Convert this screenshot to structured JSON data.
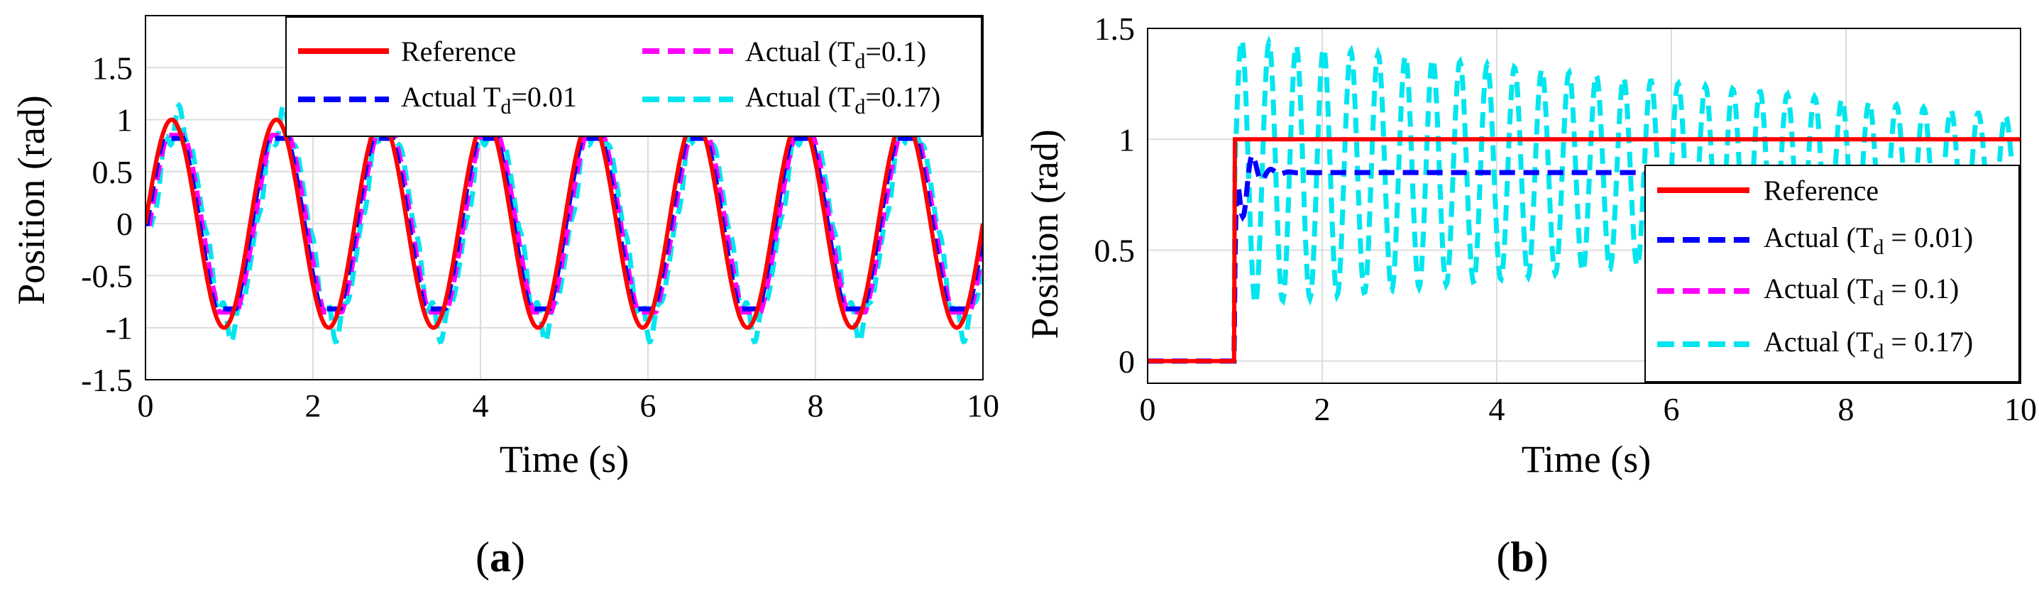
{
  "chart_data": [
    {
      "id": "a",
      "type": "line",
      "caption": "a",
      "title": "",
      "xlabel": "Time (s)",
      "ylabel": "Position (rad)",
      "xlim": [
        0,
        10
      ],
      "ylim": [
        -1.5,
        2.0
      ],
      "xticks": [
        "0",
        "2",
        "4",
        "6",
        "8",
        "10"
      ],
      "yticks": [
        "-1.5",
        "-1",
        "-0.5",
        "0",
        "0.5",
        "1",
        "1.5"
      ],
      "grid": true,
      "legend_position": "top-right",
      "signal": {
        "kind": "sine",
        "amplitude": 1.0,
        "frequency_hz": 0.8,
        "duration_s": 10
      },
      "series": [
        {
          "name": "Reference",
          "legend_main": "Reference",
          "legend_sub": "",
          "legend_tail": "",
          "color": "#ff0000",
          "style": "solid",
          "gain": 1.0,
          "delay_s": 0.0,
          "clip": 1.0,
          "jitter": 0.0
        },
        {
          "name": "Actual T_d=0.01",
          "legend_main": "Actual T",
          "legend_sub": "d",
          "legend_tail": "=0.01)",
          "legend_prefix_paren": false,
          "color": "#0000ff",
          "style": "dashed",
          "gain": 1.0,
          "delay_s": 0.02,
          "clip": 0.82,
          "jitter": 0.0
        },
        {
          "name": "Actual (T_d=0.1)",
          "legend_main": "Actual (T",
          "legend_sub": "d",
          "legend_tail": "=0.1)",
          "color": "#ff00ff",
          "style": "dashed",
          "gain": 1.0,
          "delay_s": 0.05,
          "clip": 0.85,
          "jitter": 0.0
        },
        {
          "name": "Actual (T_d=0.17)",
          "legend_main": "Actual (T",
          "legend_sub": "d",
          "legend_tail": "=0.17)",
          "color": "#00e5ee",
          "style": "dashed",
          "gain": 1.0,
          "delay_s": 0.08,
          "clip": 1.0,
          "jitter": 0.25
        }
      ],
      "legend_labels": {
        "reference": "Reference",
        "td001_main": "Actual T",
        "td001_tail": "=0.01)",
        "td01_main": "Actual (T",
        "td01_tail": "=0.1)",
        "td017_main": "Actual (T",
        "td017_tail": "=0.17)",
        "sub": "d"
      }
    },
    {
      "id": "b",
      "type": "line",
      "caption": "b",
      "title": "",
      "xlabel": "Time (s)",
      "ylabel": "Position (rad)",
      "xlim": [
        0,
        10
      ],
      "ylim": [
        -0.1,
        1.5
      ],
      "xticks": [
        "0",
        "2",
        "4",
        "6",
        "8",
        "10"
      ],
      "yticks": [
        "0",
        "0.5",
        "1",
        "1.5"
      ],
      "grid": true,
      "legend_position": "bottom-right",
      "signal": {
        "kind": "step",
        "step_time_s": 1.0,
        "final_value": 1.0,
        "duration_s": 10
      },
      "series": [
        {
          "name": "Reference",
          "legend_main": "Reference",
          "legend_sub": "",
          "legend_tail": "",
          "color": "#ff0000",
          "style": "solid",
          "final": 1.0
        },
        {
          "name": "Actual (T_d = 0.01)",
          "legend_main": "Actual (T",
          "legend_sub": "d",
          "legend_tail": " = 0.01)",
          "color": "#0000ff",
          "style": "dashed",
          "final": 0.85
        },
        {
          "name": "Actual (T_d = 0.1)",
          "legend_main": "Actual (T",
          "legend_sub": "d",
          "legend_tail": " = 0.1)",
          "color": "#ff00ff",
          "style": "dashed",
          "final": 0.85
        },
        {
          "name": "Actual (T_d = 0.17)",
          "legend_main": "Actual (T",
          "legend_sub": "d",
          "legend_tail": " = 0.17)",
          "color": "#00e5ee",
          "style": "dashed",
          "final": 0.85,
          "osc_amp_start": 0.6,
          "osc_amp_end": 0.25
        }
      ],
      "legend_labels": {
        "reference": "Reference",
        "td001_main": "Actual (T",
        "td001_tail": " = 0.01)",
        "td01_main": "Actual (T",
        "td01_tail": " = 0.1)",
        "td017_main": "Actual (T",
        "td017_tail": " = 0.17)",
        "sub": "d"
      }
    }
  ],
  "captions": {
    "a": "a",
    "b": "b"
  }
}
